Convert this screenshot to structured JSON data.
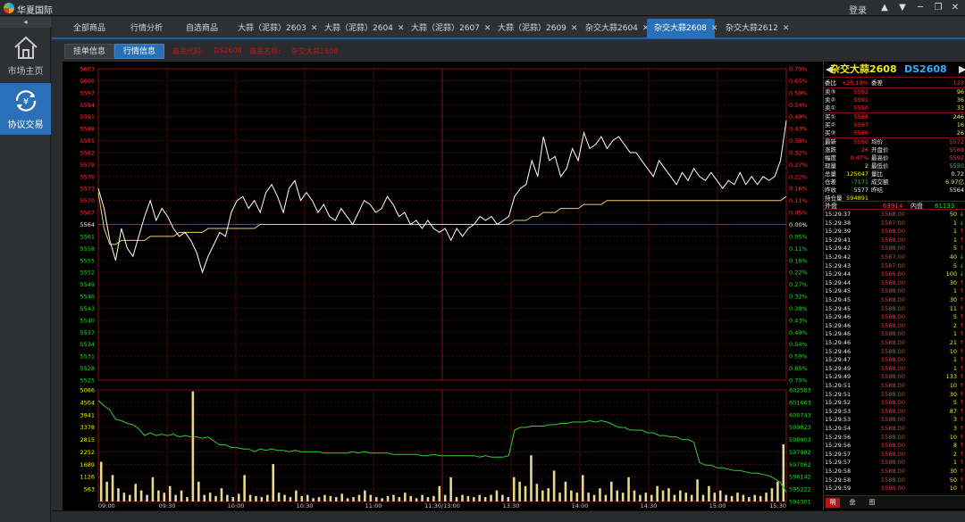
{
  "app": {
    "title": "华夏国际",
    "login_label": "登录"
  },
  "sidebar": {
    "collapse_glyph": "◂",
    "items": [
      {
        "label": "市场主页",
        "icon": "home-icon",
        "active": false
      },
      {
        "label": "协议交易",
        "icon": "currency-cycle-icon",
        "active": true
      }
    ]
  },
  "tabs": [
    {
      "label": "全部商品",
      "closable": false,
      "active": false
    },
    {
      "label": "行情分析",
      "closable": false,
      "active": false
    },
    {
      "label": "自选商品",
      "closable": false,
      "active": false
    },
    {
      "label": "大蒜（泥蒜）2603",
      "closable": true,
      "active": false
    },
    {
      "label": "大蒜（泥蒜）2604",
      "closable": true,
      "active": false
    },
    {
      "label": "大蒜（泥蒜）2607",
      "closable": true,
      "active": false
    },
    {
      "label": "大蒜（泥蒜）2609",
      "closable": true,
      "active": false
    },
    {
      "label": "杂交大蒜2604",
      "closable": true,
      "active": false
    },
    {
      "label": "杂交大蒜2608",
      "closable": true,
      "active": true
    },
    {
      "label": "杂交大蒜2612",
      "closable": true,
      "active": false
    }
  ],
  "subtabs": [
    {
      "label": "挂单信息",
      "active": false
    },
    {
      "label": "行情信息",
      "active": true
    }
  ],
  "subinfo": [
    "商品代码:",
    "DS2608",
    "商品名称:",
    "杂交大蒜2608"
  ],
  "panel": {
    "title_name": "杂交大蒜2608",
    "title_code": "DS2608",
    "quote_rows": [
      {
        "l1": "委比",
        "v1": "+25.19%",
        "l2": "委差",
        "v2": "123",
        "c1": "#ff3030",
        "c2": "#ff3030"
      },
      {
        "l1": "卖③",
        "v1": "5592",
        "l2": "",
        "v2": "96",
        "c1": "#ff3030",
        "c2": "#f0f000"
      },
      {
        "l1": "卖②",
        "v1": "5591",
        "l2": "",
        "v2": "36",
        "c1": "#ff3030",
        "c2": "#f0f000"
      },
      {
        "l1": "卖①",
        "v1": "5590",
        "l2": "",
        "v2": "33",
        "c1": "#ff3030",
        "c2": "#f0f000"
      },
      {
        "l1": "买①",
        "v1": "5588",
        "l2": "",
        "v2": "246",
        "c1": "#ff3030",
        "c2": "#f0f000"
      },
      {
        "l1": "买②",
        "v1": "5587",
        "l2": "",
        "v2": "16",
        "c1": "#ff3030",
        "c2": "#f0f000"
      },
      {
        "l1": "买③",
        "v1": "5586",
        "l2": "",
        "v2": "26",
        "c1": "#ff3030",
        "c2": "#f0f000"
      },
      {
        "l1": "最新",
        "v1": "5590",
        "l2": "均价",
        "v2": "5572",
        "c1": "#ff3030",
        "c2": "#ff3030"
      },
      {
        "l1": "涨跌",
        "v1": "26",
        "l2": "开盘价",
        "v2": "5588",
        "c1": "#ff3030",
        "c2": "#ff3030"
      },
      {
        "l1": "幅度",
        "v1": "0.47%",
        "l2": "最高价",
        "v2": "5592",
        "c1": "#ff3030",
        "c2": "#ff3030"
      },
      {
        "l1": "现量",
        "v1": "2",
        "l2": "最低价",
        "v2": "5550",
        "c1": "#f0f000",
        "c2": "#30d030"
      },
      {
        "l1": "总量",
        "v1": "125047",
        "l2": "量比",
        "v2": "0.72",
        "c1": "#f0f000",
        "c2": "#e8e8e8"
      },
      {
        "l1": "仓差",
        "v1": "-7171",
        "l2": "成交额",
        "v2": "6.97亿",
        "c1": "#30d030",
        "c2": "#f0f000"
      },
      {
        "l1": "昨收",
        "v1": "5577",
        "l2": "昨结",
        "v2": "5564",
        "c1": "#e8e8e8",
        "c2": "#e8e8e8"
      },
      {
        "l1": "持仓量",
        "v1": "594891",
        "l2": "",
        "v2": "",
        "c1": "#f0f000",
        "c2": "#e8e8e8"
      }
    ],
    "outer_label": "外盘",
    "outer_value": "63914",
    "inner_label": "内盘",
    "inner_value": "61133",
    "trades": [
      [
        "15:29:37",
        "5588.00",
        "50",
        "↓"
      ],
      [
        "15:29:38",
        "5587.00",
        "1",
        "↓"
      ],
      [
        "15:29:39",
        "5588.00",
        "1",
        "↑"
      ],
      [
        "15:29:41",
        "5588.00",
        "1",
        "↑"
      ],
      [
        "15:29:42",
        "5588.00",
        "5",
        "↑"
      ],
      [
        "15:29:42",
        "5587.00",
        "40",
        "↓"
      ],
      [
        "15:29:43",
        "5587.00",
        "5",
        "↓"
      ],
      [
        "15:29:44",
        "5586.00",
        "100",
        "↓"
      ],
      [
        "15:29:44",
        "5588.00",
        "30",
        "↑"
      ],
      [
        "15:29:45",
        "5588.00",
        "1",
        "↑"
      ],
      [
        "15:29:45",
        "5588.00",
        "30",
        "↑"
      ],
      [
        "15:29:45",
        "5588.00",
        "11",
        "↑"
      ],
      [
        "15:29:46",
        "5588.00",
        "5",
        "↑"
      ],
      [
        "15:29:46",
        "5588.00",
        "2",
        "↑"
      ],
      [
        "15:29:46",
        "5588.00",
        "1",
        "↑"
      ],
      [
        "15:29:46",
        "5588.00",
        "21",
        "↑"
      ],
      [
        "15:29:46",
        "5588.00",
        "10",
        "↑"
      ],
      [
        "15:29:47",
        "5588.00",
        "1",
        "↑"
      ],
      [
        "15:29:49",
        "5588.00",
        "1",
        "↑"
      ],
      [
        "15:29:49",
        "5588.00",
        "133",
        "↑"
      ],
      [
        "15:29:51",
        "5588.00",
        "10",
        "↑"
      ],
      [
        "15:29:51",
        "5588.00",
        "30",
        "↑"
      ],
      [
        "15:29:52",
        "5588.00",
        "5",
        "↑"
      ],
      [
        "15:29:53",
        "5588.00",
        "87",
        "↑"
      ],
      [
        "15:29:53",
        "5588.00",
        "3",
        "↑"
      ],
      [
        "15:29:54",
        "5588.00",
        "3",
        "↑"
      ],
      [
        "15:29:56",
        "5588.00",
        "10",
        "↑"
      ],
      [
        "15:29:56",
        "5588.00",
        "8",
        "↑"
      ],
      [
        "15:29:57",
        "5588.00",
        "2",
        "↑"
      ],
      [
        "15:29:57",
        "5588.00",
        "1",
        "↑"
      ],
      [
        "15:29:58",
        "5588.00",
        "30",
        "↑"
      ],
      [
        "15:29:58",
        "5588.00",
        "50",
        "↑"
      ],
      [
        "15:29:59",
        "5590.00",
        "10",
        "↑"
      ]
    ],
    "bottom_tabs": [
      {
        "label": "明",
        "active": true
      },
      {
        "label": "盘",
        "active": false
      },
      {
        "label": "图",
        "active": false
      }
    ]
  },
  "chart_data": {
    "type": "line",
    "price_axis": {
      "ticks": [
        5603,
        5600,
        5597,
        5594,
        5591,
        5588,
        5585,
        5582,
        5579,
        5576,
        5573,
        5570,
        5567,
        5564,
        5561,
        5558,
        5555,
        5552,
        5549,
        5546,
        5543,
        5540,
        5537,
        5534,
        5531,
        5528,
        5525
      ],
      "prev_settle": 5564,
      "ylim": [
        5525,
        5603
      ]
    },
    "pct_axis": {
      "ticks": [
        "0.70%",
        "0.65%",
        "0.59%",
        "0.54%",
        "0.49%",
        "0.43%",
        "0.38%",
        "0.32%",
        "0.27%",
        "0.22%",
        "0.16%",
        "0.11%",
        "0.05%",
        "0.00%",
        "0.05%",
        "0.11%",
        "0.16%",
        "0.22%",
        "0.27%",
        "0.32%",
        "0.38%",
        "0.43%",
        "0.49%",
        "0.54%",
        "0.59%",
        "0.65%",
        "0.70%"
      ]
    },
    "volume_axis": {
      "ticks": [
        5066,
        4504,
        3941,
        3378,
        2815,
        2252,
        1689,
        1126,
        563
      ],
      "ylim": [
        0,
        5066
      ]
    },
    "oi_axis": {
      "ticks": [
        602583,
        601663,
        600743,
        599823,
        598903,
        597982,
        597062,
        596142,
        595222,
        594301
      ],
      "ylim": [
        594301,
        602583
      ]
    },
    "time_labels": [
      "09:00",
      "09:30",
      "10:00",
      "10:30",
      "11:00",
      "11:30/13:00",
      "13:30",
      "14:00",
      "14:30",
      "15:00",
      "15:30"
    ],
    "series": [
      {
        "values": [
          5573,
          5568,
          5560,
          5555,
          5563,
          5558,
          5556,
          5561,
          5566,
          5570,
          5565,
          5568,
          5566,
          5563,
          5561,
          5562,
          5560,
          5557,
          5552,
          5556,
          5559,
          5562,
          5561,
          5567,
          5570,
          5571,
          5568,
          5570,
          5567,
          5572,
          5574,
          5571,
          5567,
          5573,
          5575,
          5570,
          5572,
          5570,
          5567,
          5569,
          5566,
          5565,
          5568,
          5566,
          5564,
          5567,
          5570,
          5569,
          5567,
          5568,
          5571,
          5569,
          5566,
          5567,
          5564,
          5565,
          5563,
          5565,
          5563,
          5562,
          5563,
          5560,
          5563,
          5561,
          5563,
          5564,
          5566,
          5565,
          5566,
          5564,
          5565,
          5566,
          5571,
          5573,
          5574,
          5580,
          5576,
          5586,
          5580,
          5581,
          5576,
          5578,
          5583,
          5580,
          5587,
          5583,
          5584,
          5586,
          5583,
          5585,
          5586,
          5584,
          5582,
          5582,
          5580,
          5578,
          5576,
          5580,
          5578,
          5576,
          5574,
          5577,
          5575,
          5578,
          5576,
          5575,
          5577,
          5575,
          5573,
          5575,
          5574,
          5577,
          5574,
          5576,
          5574,
          5576,
          5575,
          5576,
          5580,
          5590
        ]
      },
      {
        "values": [
          5572,
          5563,
          5559,
          5559,
          5560,
          5560,
          5560,
          5560,
          5560,
          5561,
          5561,
          5561,
          5561,
          5561,
          5562,
          5562,
          5562,
          5562,
          5562,
          5563,
          5563,
          5563,
          5563,
          5563,
          5563,
          5563,
          5563,
          5563,
          5564,
          5564,
          5564,
          5564,
          5564,
          5564,
          5564,
          5564,
          5564,
          5564,
          5564,
          5564,
          5564,
          5564,
          5564,
          5564,
          5564,
          5564,
          5564,
          5564,
          5564,
          5564,
          5564,
          5564,
          5564,
          5564,
          5564,
          5564,
          5564,
          5564,
          5564,
          5564,
          5564,
          5564,
          5564,
          5564,
          5564,
          5564,
          5564,
          5564,
          5564,
          5564,
          5564,
          5564,
          5565,
          5565,
          5565,
          5566,
          5566,
          5567,
          5567,
          5567,
          5568,
          5568,
          5568,
          5568,
          5569,
          5569,
          5569,
          5569,
          5570,
          5570,
          5570,
          5570,
          5570,
          5570,
          5570,
          5570,
          5570,
          5570,
          5570,
          5570,
          5570,
          5570,
          5570,
          5570,
          5570,
          5570,
          5570,
          5570,
          5570,
          5570,
          5570,
          5570,
          5570,
          5570,
          5570,
          5570,
          5570,
          5570,
          5570,
          5571
        ]
      },
      {
        "values": [
          601800,
          601400,
          601100,
          600400,
          600300,
          600100,
          600000,
          599700,
          599200,
          599400,
          599200,
          599300,
          599200,
          599300,
          599100,
          599200,
          599100,
          599100,
          599000,
          599100,
          598800,
          598500,
          598500,
          598300,
          598300,
          598200,
          598200,
          598000,
          598200,
          598100,
          598200,
          598100,
          598100,
          598000,
          598100,
          598000,
          598000,
          598000,
          598000,
          597900,
          597900,
          597900,
          597900,
          597900,
          598000,
          597900,
          598000,
          597900,
          597900,
          597900,
          597900,
          597800,
          597800,
          597800,
          597800,
          597800,
          597700,
          597700,
          597800,
          597700,
          597700,
          597700,
          597700,
          597700,
          597700,
          597700,
          597600,
          597700,
          597600,
          597600,
          597600,
          597700,
          599600,
          599800,
          599800,
          599900,
          599900,
          599900,
          600000,
          600000,
          600100,
          600100,
          600200,
          600200,
          600200,
          600300,
          600200,
          600300,
          600200,
          600000,
          599800,
          599800,
          599600,
          599600,
          599600,
          599400,
          599400,
          599200,
          599200,
          599100,
          599100,
          598900,
          598900,
          598700,
          597200,
          597000,
          597000,
          596800,
          596800,
          596700,
          596600,
          596600,
          596500,
          596400,
          596400,
          596300,
          596200,
          596000,
          595700,
          595000
        ]
      }
    ],
    "volumes": [
      1800,
      900,
      1200,
      600,
      400,
      300,
      800,
      500,
      300,
      1100,
      500,
      400,
      700,
      300,
      500,
      200,
      5000,
      900,
      300,
      400,
      250,
      600,
      300,
      200,
      350,
      1200,
      300,
      250,
      200,
      300,
      1700,
      400,
      300,
      200,
      500,
      250,
      300,
      150,
      200,
      300,
      250,
      200,
      350,
      150,
      200,
      300,
      500,
      300,
      200,
      150,
      250,
      300,
      200,
      400,
      250,
      150,
      300,
      200,
      250,
      700,
      300,
      1100,
      200,
      300,
      250,
      200,
      300,
      200,
      300,
      500,
      300,
      200,
      1100,
      900,
      700,
      2100,
      800,
      500,
      600,
      1400,
      400,
      900,
      500,
      400,
      1200,
      400,
      300,
      600,
      300,
      900,
      500,
      400,
      1100,
      500,
      300,
      400,
      300,
      700,
      500,
      600,
      300,
      500,
      400,
      300,
      1000,
      300,
      700,
      400,
      500,
      300,
      250,
      400,
      300,
      200,
      300,
      250,
      400,
      600,
      900,
      2600
    ]
  }
}
